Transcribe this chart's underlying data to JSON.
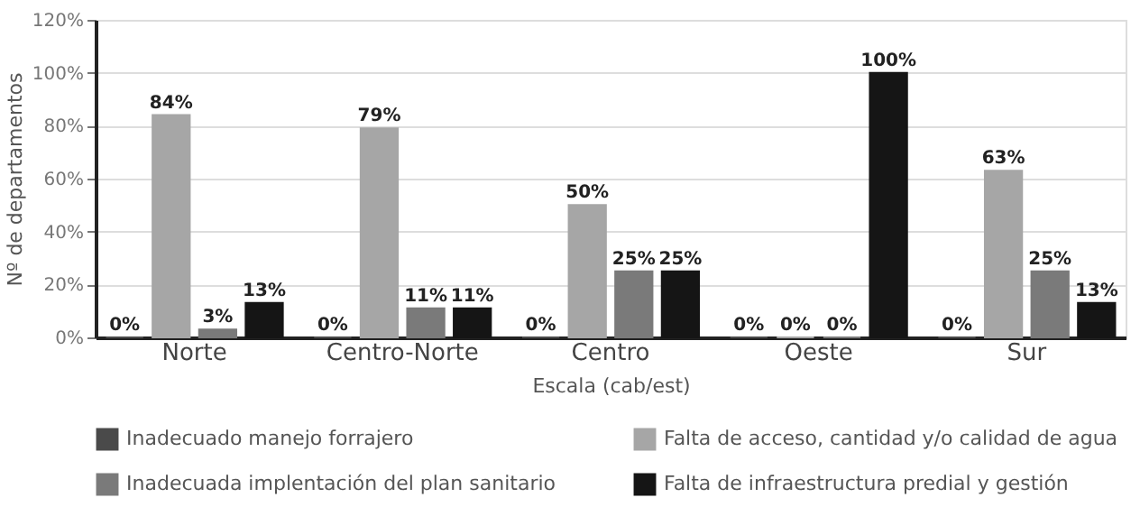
{
  "chart_data": {
    "type": "bar",
    "xlabel": "Escala (cab/est)",
    "ylabel": "Nº de departamentos",
    "categories": [
      "Norte",
      "Centro-Norte",
      "Centro",
      "Oeste",
      "Sur"
    ],
    "series": [
      {
        "name": "Inadecuado manejo forrajero",
        "color": "#4a4a4a",
        "values": [
          0,
          0,
          0,
          0,
          0
        ],
        "value_labels": [
          "0%",
          "0%",
          "0%",
          "0%",
          "0%"
        ]
      },
      {
        "name": "Falta de acceso, cantidad y/o calidad de agua",
        "color": "#a6a6a6",
        "values": [
          84,
          79,
          50,
          0,
          63
        ],
        "value_labels": [
          "84%",
          "79%",
          "50%",
          "0%",
          "63%"
        ]
      },
      {
        "name": "Inadecuada implentación del plan sanitario",
        "color": "#7a7a7a",
        "values": [
          3,
          11,
          25,
          0,
          25
        ],
        "value_labels": [
          "3%",
          "11%",
          "25%",
          "0%",
          "25%"
        ]
      },
      {
        "name": "Falta de infraestructura predial y gestión",
        "color": "#151515",
        "values": [
          13,
          11,
          25,
          100,
          13
        ],
        "value_labels": [
          "13%",
          "11%",
          "25%",
          "100%",
          "13%"
        ]
      }
    ],
    "ylim": [
      0,
      120
    ],
    "yticks": [
      {
        "value": 0,
        "label": "0%"
      },
      {
        "value": 20,
        "label": "20%"
      },
      {
        "value": 40,
        "label": "40%"
      },
      {
        "value": 60,
        "label": "60%"
      },
      {
        "value": 80,
        "label": "80%"
      },
      {
        "value": 100,
        "label": "100%"
      },
      {
        "value": 120,
        "label": "120%"
      }
    ],
    "grid": "y",
    "legend": "bottom"
  }
}
